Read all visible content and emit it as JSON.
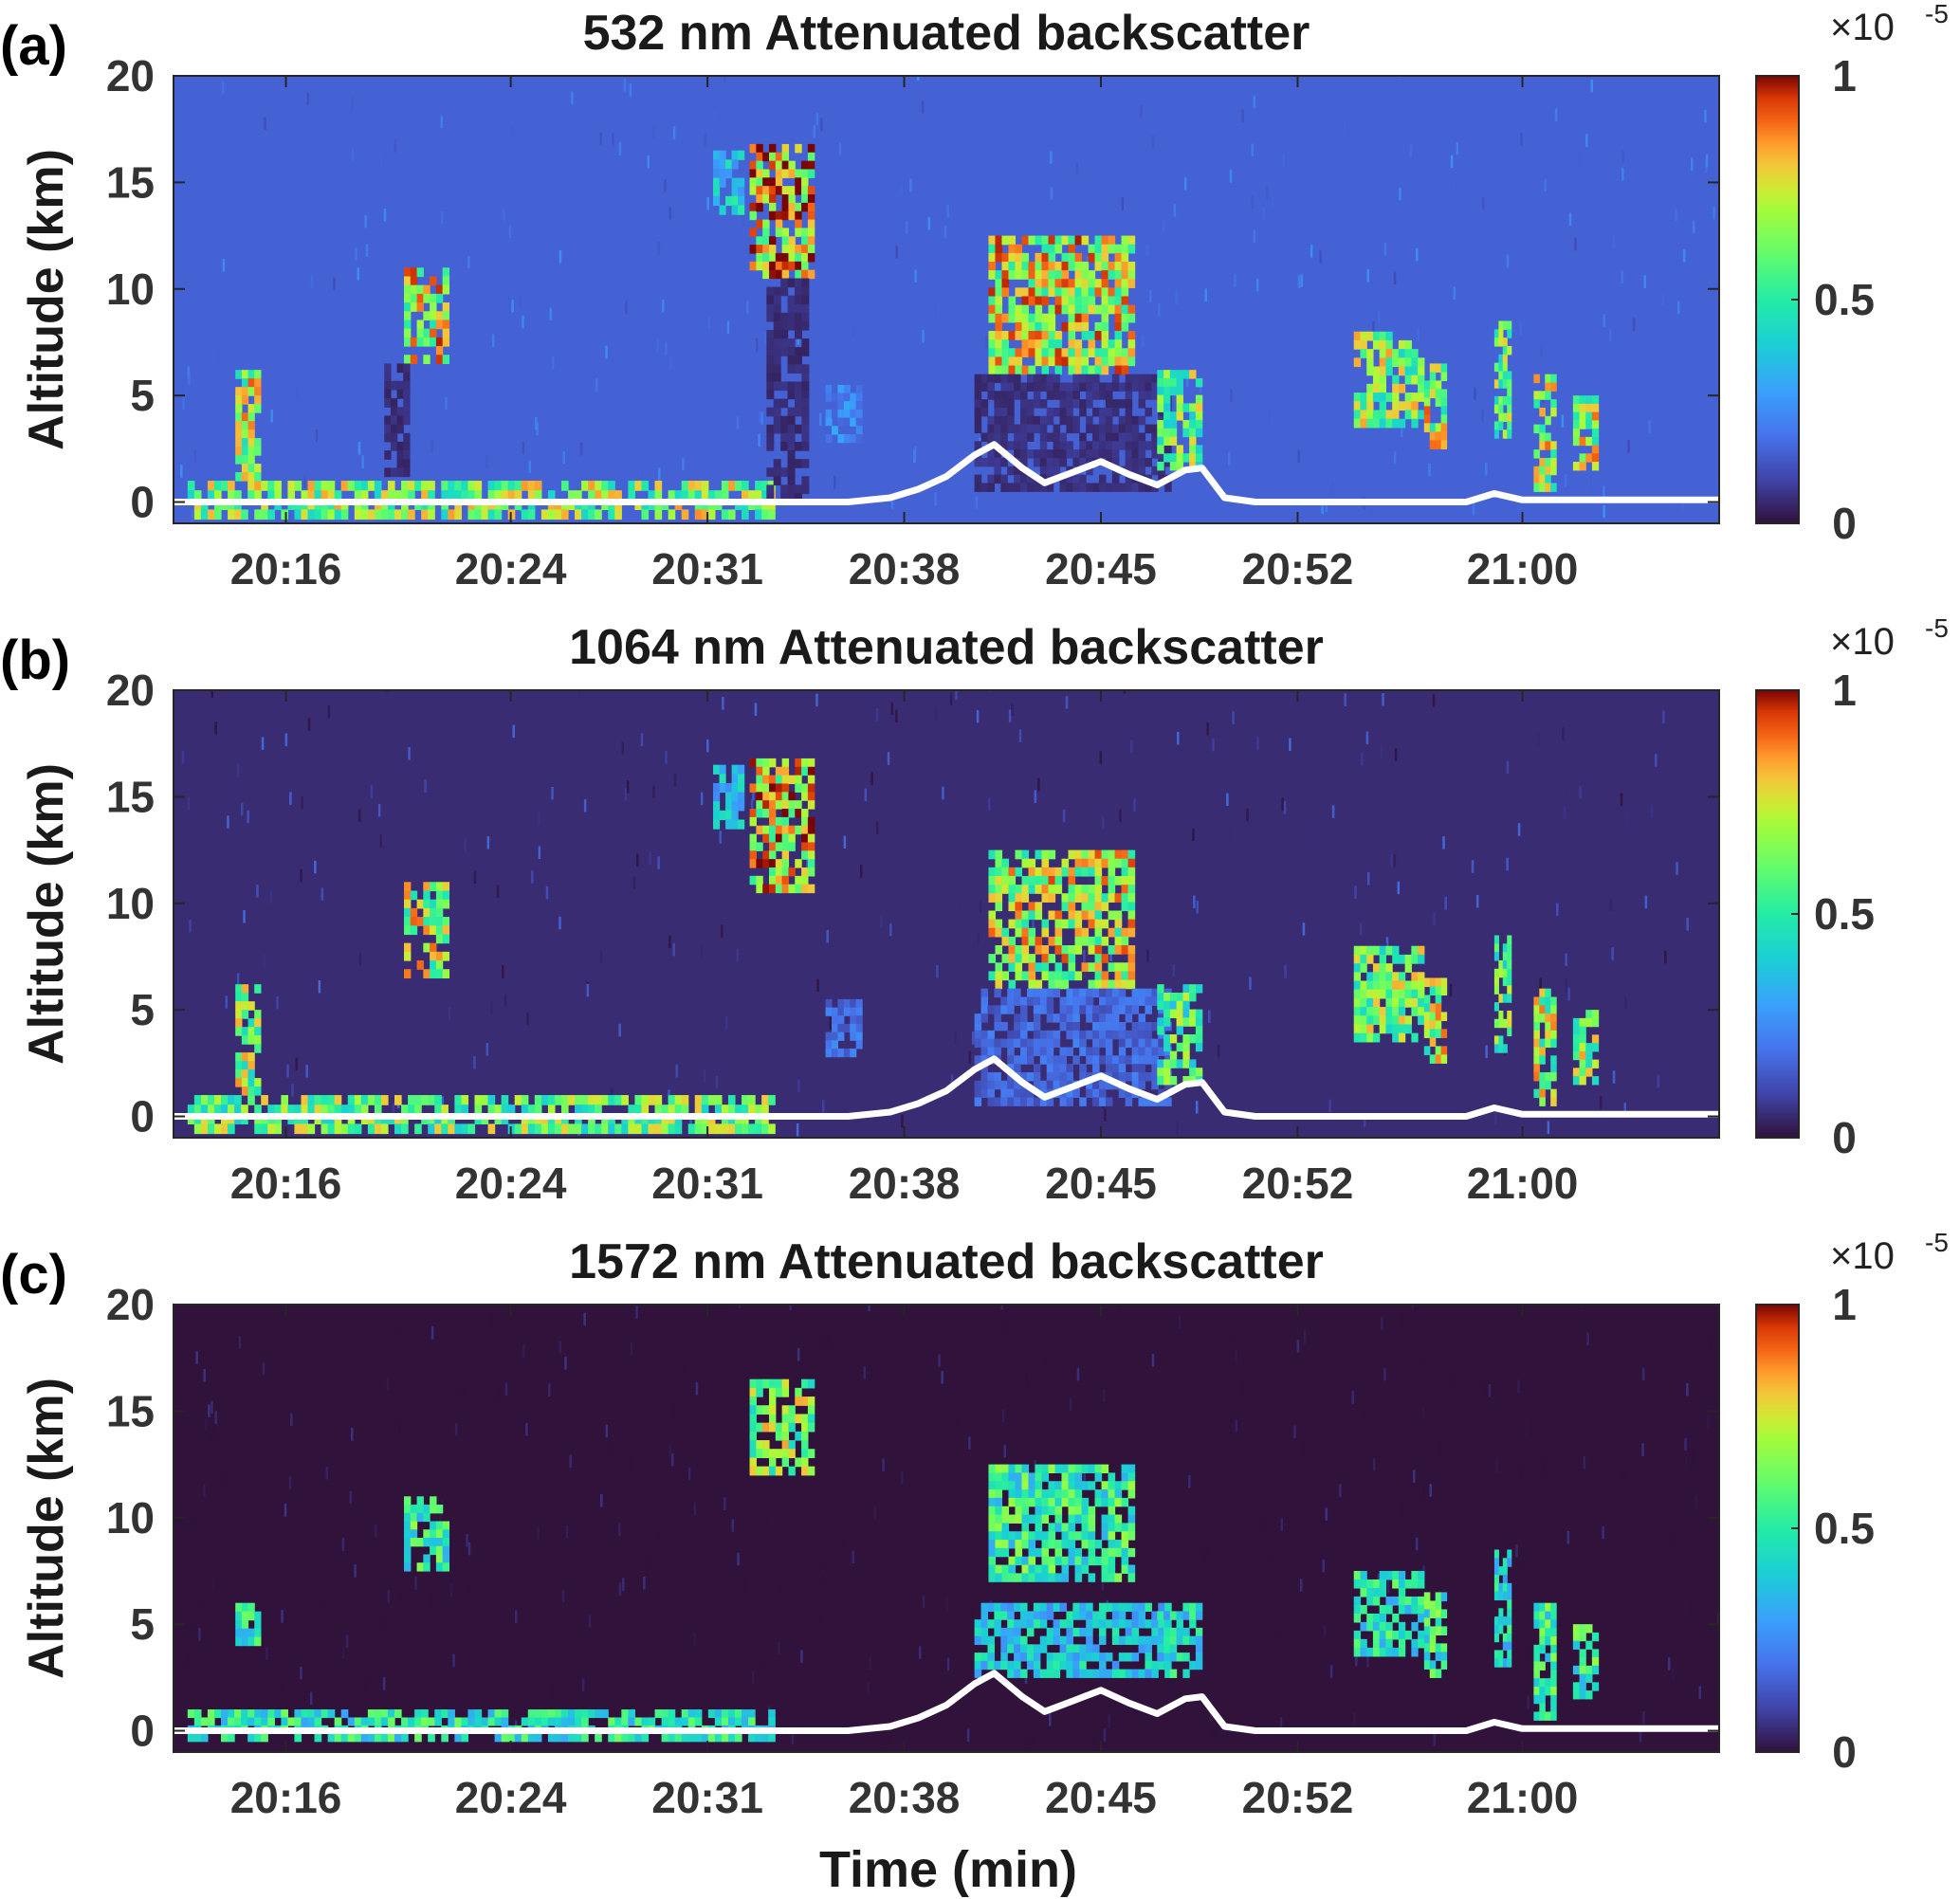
{
  "figure": {
    "xlabel": "Time (min)",
    "ylabel": "Altitude (km)",
    "colorbar_multiplier_base": "×10",
    "colorbar_multiplier_exp": "-5",
    "colormap": "turbo",
    "surface_line_color": "#ffffff"
  },
  "chart_data": [
    {
      "type": "heatmap",
      "panel_label": "(a)",
      "title": "532 nm Attenuated backscatter",
      "xlabel": "",
      "ylabel": "Altitude (km)",
      "x_tick_labels": [
        "20:16",
        "20:24",
        "20:31",
        "20:38",
        "20:45",
        "20:52",
        "21:00"
      ],
      "x_tick_minutes": [
        16,
        24,
        31,
        38,
        45,
        52,
        60
      ],
      "xlim_minutes": [
        12,
        67
      ],
      "y_ticks": [
        0,
        5,
        10,
        15,
        20
      ],
      "ylim": [
        -1,
        20
      ],
      "colorbar": {
        "ticks": [
          0,
          0.5,
          1
        ],
        "tick_labels": [
          "0",
          "0.5",
          "1"
        ],
        "range": [
          0,
          1
        ]
      },
      "background_level": 0.16,
      "noise": 0.03,
      "features": [
        {
          "x": [
            12.5,
            33.4
          ],
          "y": [
            -0.8,
            1.0
          ],
          "value": 0.75
        },
        {
          "x": [
            14.2,
            15.1
          ],
          "y": [
            1.0,
            6.2
          ],
          "value": 0.8
        },
        {
          "x": [
            20.2,
            21.8
          ],
          "y": [
            6.5,
            11.0
          ],
          "value": 0.85
        },
        {
          "x": [
            19.5,
            20.4
          ],
          "y": [
            1.2,
            6.5
          ],
          "value": 0.06
        },
        {
          "x": [
            32.5,
            34.8
          ],
          "y": [
            10.5,
            16.8
          ],
          "value": 0.95
        },
        {
          "x": [
            31.2,
            32.3
          ],
          "y": [
            13.5,
            16.5
          ],
          "value": 0.45
        },
        {
          "x": [
            33.1,
            34.6
          ],
          "y": [
            0.0,
            10.5
          ],
          "value": 0.06
        },
        {
          "x": [
            35.2,
            36.5
          ],
          "y": [
            2.8,
            5.5
          ],
          "value": 0.28
        },
        {
          "x": [
            41.0,
            46.2
          ],
          "y": [
            6.0,
            12.5
          ],
          "value": 0.85
        },
        {
          "x": [
            40.5,
            47.5
          ],
          "y": [
            0.5,
            6.0
          ],
          "value": 0.07
        },
        {
          "x": [
            47.0,
            48.6
          ],
          "y": [
            1.5,
            6.2
          ],
          "value": 0.7
        },
        {
          "x": [
            54.0,
            56.5
          ],
          "y": [
            3.5,
            8.0
          ],
          "value": 0.75
        },
        {
          "x": [
            56.5,
            57.3
          ],
          "y": [
            2.5,
            6.5
          ],
          "value": 0.8
        },
        {
          "x": [
            59.0,
            59.6
          ],
          "y": [
            3.0,
            8.5
          ],
          "value": 0.7
        },
        {
          "x": [
            60.4,
            61.2
          ],
          "y": [
            0.5,
            6.0
          ],
          "value": 0.8
        },
        {
          "x": [
            61.8,
            62.7
          ],
          "y": [
            1.5,
            5.0
          ],
          "value": 0.8
        }
      ],
      "surface_altitude": {
        "time_minutes": [
          12,
          36,
          37.5,
          38.5,
          39.5,
          40.5,
          41.2,
          42.2,
          43,
          44,
          45,
          46,
          47,
          48,
          48.6,
          49.4,
          50.5,
          58,
          59,
          60,
          67
        ],
        "altitude_km": [
          0,
          0,
          0.2,
          0.6,
          1.2,
          2.2,
          2.7,
          1.6,
          0.9,
          1.4,
          1.9,
          1.3,
          0.8,
          1.5,
          1.6,
          0.2,
          0.0,
          0.0,
          0.4,
          0.1,
          0.1
        ]
      }
    },
    {
      "type": "heatmap",
      "panel_label": "(b)",
      "title": "1064 nm Attenuated backscatter",
      "xlabel": "",
      "ylabel": "Altitude (km)",
      "x_tick_labels": [
        "20:16",
        "20:24",
        "20:31",
        "20:38",
        "20:45",
        "20:52",
        "21:00"
      ],
      "x_tick_minutes": [
        16,
        24,
        31,
        38,
        45,
        52,
        60
      ],
      "xlim_minutes": [
        12,
        67
      ],
      "y_ticks": [
        0,
        5,
        10,
        15,
        20
      ],
      "ylim": [
        -1,
        20
      ],
      "colorbar": {
        "ticks": [
          0,
          0.5,
          1
        ],
        "tick_labels": [
          "0",
          "0.5",
          "1"
        ],
        "range": [
          0,
          1
        ]
      },
      "background_level": 0.05,
      "noise": 0.04,
      "features": [
        {
          "x": [
            12.5,
            33.4
          ],
          "y": [
            -0.8,
            1.0
          ],
          "value": 0.7
        },
        {
          "x": [
            14.2,
            15.1
          ],
          "y": [
            1.0,
            6.2
          ],
          "value": 0.75
        },
        {
          "x": [
            20.2,
            21.8
          ],
          "y": [
            6.5,
            11.0
          ],
          "value": 0.8
        },
        {
          "x": [
            32.5,
            34.8
          ],
          "y": [
            10.5,
            16.8
          ],
          "value": 0.92
        },
        {
          "x": [
            31.2,
            32.3
          ],
          "y": [
            13.5,
            16.5
          ],
          "value": 0.42
        },
        {
          "x": [
            35.2,
            36.5
          ],
          "y": [
            2.8,
            5.5
          ],
          "value": 0.22
        },
        {
          "x": [
            41.0,
            46.2
          ],
          "y": [
            6.0,
            12.5
          ],
          "value": 0.82
        },
        {
          "x": [
            40.5,
            47.5
          ],
          "y": [
            0.5,
            6.0
          ],
          "value": 0.2
        },
        {
          "x": [
            47.0,
            48.6
          ],
          "y": [
            1.5,
            6.2
          ],
          "value": 0.65
        },
        {
          "x": [
            54.0,
            56.5
          ],
          "y": [
            3.5,
            8.0
          ],
          "value": 0.72
        },
        {
          "x": [
            56.5,
            57.3
          ],
          "y": [
            2.5,
            6.5
          ],
          "value": 0.78
        },
        {
          "x": [
            59.0,
            59.6
          ],
          "y": [
            3.0,
            8.5
          ],
          "value": 0.68
        },
        {
          "x": [
            60.4,
            61.2
          ],
          "y": [
            0.5,
            6.0
          ],
          "value": 0.78
        },
        {
          "x": [
            61.8,
            62.7
          ],
          "y": [
            1.5,
            5.0
          ],
          "value": 0.78
        }
      ],
      "surface_altitude": {
        "time_minutes": [
          12,
          36,
          37.5,
          38.5,
          39.5,
          40.5,
          41.2,
          42.2,
          43,
          44,
          45,
          46,
          47,
          48,
          48.6,
          49.4,
          50.5,
          58,
          59,
          60,
          67
        ],
        "altitude_km": [
          0,
          0,
          0.2,
          0.6,
          1.2,
          2.2,
          2.7,
          1.6,
          0.9,
          1.4,
          1.9,
          1.3,
          0.8,
          1.5,
          1.6,
          0.2,
          0.0,
          0.0,
          0.4,
          0.1,
          0.1
        ]
      }
    },
    {
      "type": "heatmap",
      "panel_label": "(c)",
      "title": "1572 nm Attenuated backscatter",
      "xlabel": "Time (min)",
      "ylabel": "Altitude (km)",
      "x_tick_labels": [
        "20:16",
        "20:24",
        "20:31",
        "20:38",
        "20:45",
        "20:52",
        "21:00"
      ],
      "x_tick_minutes": [
        16,
        24,
        31,
        38,
        45,
        52,
        60
      ],
      "xlim_minutes": [
        12,
        67
      ],
      "y_ticks": [
        0,
        5,
        10,
        15,
        20
      ],
      "ylim": [
        -1,
        20
      ],
      "colorbar": {
        "ticks": [
          0,
          0.5,
          1
        ],
        "tick_labels": [
          "0",
          "0.5",
          "1"
        ],
        "range": [
          0,
          1
        ]
      },
      "background_level": 0.0,
      "noise": 0.02,
      "features": [
        {
          "x": [
            12.5,
            33.4
          ],
          "y": [
            -0.5,
            1.0
          ],
          "value": 0.55
        },
        {
          "x": [
            14.2,
            15.1
          ],
          "y": [
            4.0,
            6.0
          ],
          "value": 0.55
        },
        {
          "x": [
            20.2,
            21.8
          ],
          "y": [
            7.5,
            11.0
          ],
          "value": 0.6
        },
        {
          "x": [
            32.5,
            34.8
          ],
          "y": [
            12.0,
            16.5
          ],
          "value": 0.75
        },
        {
          "x": [
            41.0,
            46.2
          ],
          "y": [
            7.0,
            12.5
          ],
          "value": 0.6
        },
        {
          "x": [
            40.5,
            47.5
          ],
          "y": [
            2.5,
            6.0
          ],
          "value": 0.45
        },
        {
          "x": [
            47.0,
            48.6
          ],
          "y": [
            2.5,
            6.0
          ],
          "value": 0.5
        },
        {
          "x": [
            54.0,
            56.5
          ],
          "y": [
            3.5,
            7.5
          ],
          "value": 0.55
        },
        {
          "x": [
            56.5,
            57.3
          ],
          "y": [
            2.5,
            6.5
          ],
          "value": 0.6
        },
        {
          "x": [
            59.0,
            59.6
          ],
          "y": [
            3.0,
            8.5
          ],
          "value": 0.5
        },
        {
          "x": [
            60.4,
            61.2
          ],
          "y": [
            0.5,
            6.0
          ],
          "value": 0.6
        },
        {
          "x": [
            61.8,
            62.7
          ],
          "y": [
            1.5,
            5.0
          ],
          "value": 0.6
        }
      ],
      "surface_altitude": {
        "time_minutes": [
          12,
          36,
          37.5,
          38.5,
          39.5,
          40.5,
          41.2,
          42.2,
          43,
          44,
          45,
          46,
          47,
          48,
          48.6,
          49.4,
          50.5,
          58,
          59,
          60,
          67
        ],
        "altitude_km": [
          0,
          0,
          0.2,
          0.6,
          1.2,
          2.2,
          2.7,
          1.6,
          0.9,
          1.4,
          1.9,
          1.3,
          0.8,
          1.5,
          1.6,
          0.2,
          0.0,
          0.0,
          0.4,
          0.1,
          0.1
        ]
      }
    }
  ]
}
